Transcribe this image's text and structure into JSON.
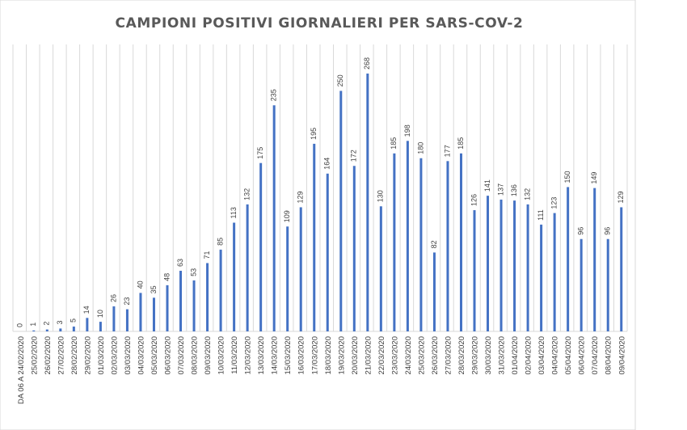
{
  "chart_data": {
    "type": "bar",
    "title": "CAMPIONI POSITIVI GIORNALIERI PER SARS-COV-2",
    "xlabel": "",
    "ylabel": "",
    "ylim": [
      0,
      280
    ],
    "grid": "vertical",
    "legend": "none",
    "bar_color": "#4472c4",
    "categories": [
      "DA 06 A 24/02/2020",
      "25/02/2020",
      "26/02/2020",
      "27/02/2020",
      "28/02/2020",
      "29/02/2020",
      "01/03/2020",
      "02/03/2020",
      "03/03/2020",
      "04/03/2020",
      "05/03/2020",
      "06/03/2020",
      "07/03/2020",
      "08/03/2020",
      "09/03/2020",
      "10/03/2020",
      "11/03/2020",
      "12/03/2020",
      "13/03/2020",
      "14/03/2020",
      "15/03/2020",
      "16/03/2020",
      "17/03/2020",
      "18/03/2020",
      "19/03/2020",
      "20/03/2020",
      "21/03/2020",
      "22/03/2020",
      "23/03/2020",
      "24/03/2020",
      "25/03/2020",
      "26/03/2020",
      "27/03/2020",
      "28/03/2020",
      "29/03/2020",
      "30/03/2020",
      "31/03/2020",
      "01/04/2020",
      "02/04/2020",
      "03/04/2020",
      "04/04/2020",
      "05/04/2020",
      "06/04/2020",
      "07/04/2020",
      "08/04/2020",
      "09/04/2020"
    ],
    "values": [
      0,
      1,
      2,
      3,
      5,
      14,
      10,
      26,
      23,
      40,
      35,
      48,
      63,
      53,
      71,
      85,
      113,
      132,
      175,
      235,
      109,
      129,
      195,
      164,
      250,
      172,
      268,
      130,
      185,
      198,
      180,
      82,
      177,
      185,
      126,
      141,
      137,
      136,
      132,
      111,
      123,
      150,
      96,
      149,
      96,
      129
    ]
  }
}
